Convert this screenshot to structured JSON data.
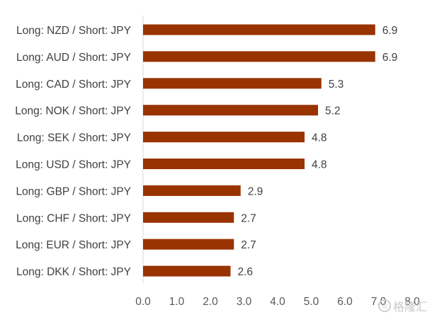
{
  "chart_data": {
    "type": "bar",
    "orientation": "horizontal",
    "categories": [
      "Long: NZD / Short: JPY",
      "Long: AUD / Short: JPY",
      "Long: CAD / Short: JPY",
      "Long: NOK / Short: JPY",
      "Long: SEK / Short: JPY",
      "Long: USD / Short: JPY",
      "Long: GBP / Short: JPY",
      "Long: CHF / Short: JPY",
      "Long: EUR / Short: JPY",
      "Long: DKK / Short: JPY"
    ],
    "values": [
      6.9,
      6.9,
      5.3,
      5.2,
      4.8,
      4.8,
      2.9,
      2.7,
      2.7,
      2.6
    ],
    "data_labels": [
      "6.9",
      "6.9",
      "5.3",
      "5.2",
      "4.8",
      "4.8",
      "2.9",
      "2.7",
      "2.7",
      "2.6"
    ],
    "xlim": [
      0,
      8
    ],
    "ticks": [
      "0.0",
      "1.0",
      "2.0",
      "3.0",
      "4.0",
      "5.0",
      "6.0",
      "7.0",
      "8.0"
    ],
    "bar_color": "#993300",
    "grid": false,
    "title": "",
    "xlabel": "",
    "ylabel": ""
  },
  "watermark": {
    "text": "格隆汇",
    "icon": "watermark-logo-icon"
  }
}
